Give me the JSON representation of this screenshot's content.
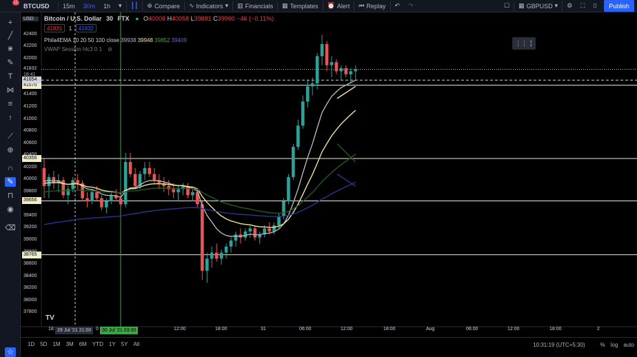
{
  "topbar": {
    "notification_count": "11",
    "symbol": "BTCUSD",
    "timeframes": [
      "15m",
      "30m",
      "1h"
    ],
    "compare": "Compare",
    "indicators": "Indicators",
    "financials": "Financials",
    "templates": "Templates",
    "alert": "Alert",
    "replay": "Replay",
    "currency": "GBPUSD",
    "publish": "Publish"
  },
  "legend": {
    "title": "Bitcoin / U.S. Dollar",
    "interval": "30",
    "exchange": "FTX",
    "o_label": "O",
    "o": "40006",
    "h_label": "H",
    "h": "40058",
    "l_label": "L",
    "l": "39881",
    "c_label": "C",
    "c": "39960",
    "change": "−46 (−0.11%)",
    "bid": "41831",
    "spread": "1",
    "ask": "41832",
    "ema_name": "Phila4EMA 10 20 50 100 close",
    "ema_values": [
      "39938",
      "39948",
      "39852",
      "39409"
    ],
    "vwap_name": "VWAP Session hlc3 0 1"
  },
  "price_axis": {
    "currency": "USD",
    "ticks": [
      "42400",
      "42200",
      "42000",
      "41800",
      "41600",
      "41400",
      "41200",
      "41000",
      "40800",
      "40600",
      "40400",
      "40200",
      "40000",
      "39800",
      "39600",
      "39400",
      "39200",
      "39000",
      "38800",
      "38600",
      "38400",
      "38200",
      "38000",
      "37800"
    ],
    "current_price": "41832",
    "countdown": "18:41",
    "crosshair_price": "41654",
    "level_labels": [
      "41570",
      "40356",
      "39656",
      "38765"
    ]
  },
  "time_axis": {
    "ticks": [
      "18:",
      "12:00",
      "18:00",
      "31",
      "06:00",
      "12:00",
      "18:00",
      "Aug",
      "06:00",
      "12:00",
      "18:00",
      "2"
    ],
    "highlight_left": "29 Jul '21  21:00",
    "highlight_right": "30 Jul '21  03:30",
    "small_left": "0"
  },
  "bottombar": {
    "ranges": [
      "1D",
      "5D",
      "1M",
      "3M",
      "6M",
      "YTD",
      "1Y",
      "5Y",
      "All"
    ],
    "clock": "10:31:19 (UTC+5:30)",
    "pct": "%",
    "log": "log",
    "auto": "auto"
  },
  "icons": {
    "crosshair": "crosshair-icon",
    "trendline": "trendline-icon",
    "fib": "fib-icon",
    "brush": "brush-icon",
    "text": "text-icon",
    "pattern": "pattern-icon",
    "ruler": "ruler-icon",
    "zoom": "zoom-icon",
    "magnet": "magnet-icon",
    "lock": "lock-icon",
    "eye": "eye-icon",
    "trash": "trash-icon"
  },
  "chart_data": {
    "type": "candlestick",
    "ylim": [
      37700,
      42500
    ],
    "colors": {
      "up": "#26a69a",
      "down": "#ef5350",
      "ema10": "#b2b5be",
      "ema20": "#f5e68c",
      "ema50": "#1b5e20",
      "ema100": "#283593"
    },
    "horizontal_levels": [
      41570,
      40356,
      39656,
      38765
    ],
    "candles": [
      [
        40200,
        40350,
        39700,
        39900
      ],
      [
        39900,
        40100,
        39700,
        40050
      ],
      [
        40050,
        40150,
        39850,
        39950
      ],
      [
        39950,
        40100,
        39800,
        40000
      ],
      [
        40000,
        40050,
        39700,
        39750
      ],
      [
        39750,
        39900,
        39600,
        39850
      ],
      [
        39850,
        40050,
        39800,
        40000
      ],
      [
        40000,
        40100,
        39850,
        39950
      ],
      [
        39950,
        40000,
        39650,
        39700
      ],
      [
        39700,
        39800,
        39550,
        39650
      ],
      [
        39650,
        39850,
        39600,
        39800
      ],
      [
        39800,
        39900,
        39650,
        39700
      ],
      [
        39700,
        39750,
        39500,
        39550
      ],
      [
        39550,
        39700,
        39450,
        39650
      ],
      [
        39650,
        39800,
        39600,
        39750
      ],
      [
        39750,
        39850,
        39650,
        39700
      ],
      [
        39700,
        39800,
        39550,
        39600
      ],
      [
        39600,
        40450,
        39550,
        40300
      ],
      [
        40300,
        40450,
        40050,
        40100
      ],
      [
        40100,
        40200,
        39850,
        39900
      ],
      [
        39900,
        40150,
        39850,
        40100
      ],
      [
        40100,
        40300,
        40000,
        40200
      ],
      [
        40200,
        40300,
        40050,
        40100
      ],
      [
        40100,
        40200,
        39950,
        40000
      ],
      [
        40000,
        40100,
        39850,
        39950
      ],
      [
        39950,
        40050,
        39800,
        39900
      ],
      [
        39900,
        40000,
        39750,
        39850
      ],
      [
        39850,
        39950,
        39700,
        39800
      ],
      [
        39800,
        39900,
        39650,
        39850
      ],
      [
        39850,
        39950,
        39750,
        39900
      ],
      [
        39900,
        39950,
        39700,
        39750
      ],
      [
        39750,
        39850,
        39650,
        39800
      ],
      [
        39800,
        39850,
        39550,
        39600
      ],
      [
        39600,
        39650,
        38350,
        38500
      ],
      [
        38500,
        38800,
        38300,
        38700
      ],
      [
        38700,
        38900,
        38550,
        38800
      ],
      [
        38800,
        38950,
        38650,
        38700
      ],
      [
        38700,
        38850,
        38600,
        38800
      ],
      [
        38800,
        38950,
        38700,
        38900
      ],
      [
        38900,
        39050,
        38800,
        39000
      ],
      [
        39000,
        39150,
        38900,
        39100
      ],
      [
        39100,
        39200,
        38950,
        39050
      ],
      [
        39050,
        39200,
        39000,
        39150
      ],
      [
        39150,
        39250,
        39050,
        39200
      ],
      [
        39200,
        39250,
        39000,
        39050
      ],
      [
        39050,
        39150,
        38950,
        39100
      ],
      [
        39100,
        39250,
        39050,
        39200
      ],
      [
        39200,
        39300,
        39100,
        39150
      ],
      [
        39150,
        39300,
        39100,
        39250
      ],
      [
        39250,
        39450,
        39200,
        39400
      ],
      [
        39400,
        39700,
        39350,
        39650
      ],
      [
        39650,
        40100,
        39600,
        40050
      ],
      [
        40050,
        40600,
        40000,
        40550
      ],
      [
        40550,
        41000,
        40500,
        40900
      ],
      [
        40900,
        41400,
        40850,
        41300
      ],
      [
        41300,
        41650,
        41200,
        41550
      ],
      [
        41550,
        41700,
        41400,
        41600
      ],
      [
        41600,
        42100,
        41500,
        42050
      ],
      [
        42050,
        42400,
        41900,
        42250
      ],
      [
        42250,
        42300,
        41800,
        41900
      ],
      [
        41900,
        42050,
        41700,
        41950
      ],
      [
        41950,
        42000,
        41750,
        41800
      ],
      [
        41800,
        41900,
        41650,
        41850
      ],
      [
        41850,
        41900,
        41700,
        41750
      ],
      [
        41750,
        41850,
        41600,
        41800
      ],
      [
        41800,
        41900,
        41650,
        41832
      ]
    ]
  }
}
